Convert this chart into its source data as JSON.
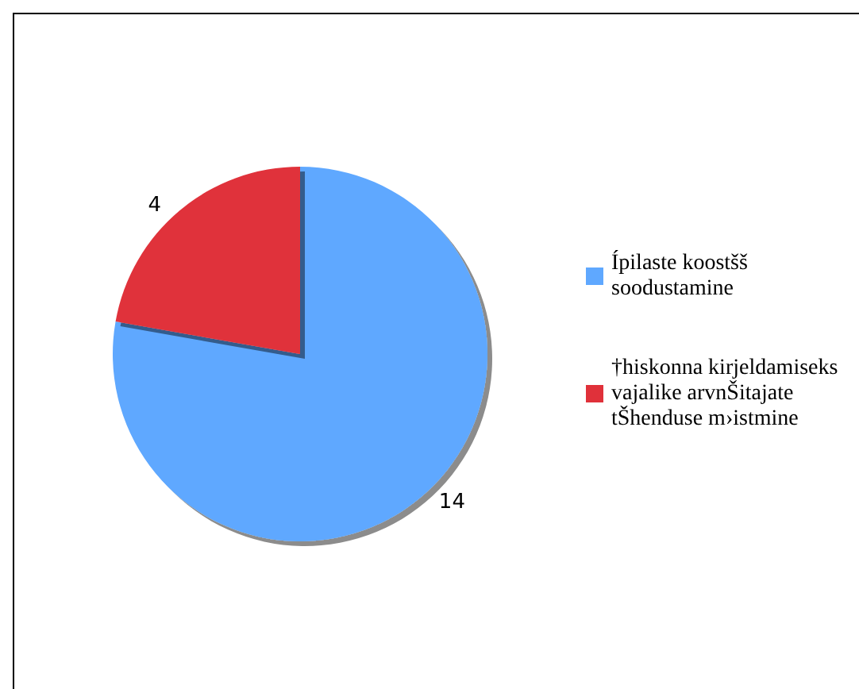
{
  "chart_data": {
    "type": "pie",
    "categories": [
      "Ípilaste koostšš soodustamine",
      "†hiskonna kirjeldamiseks vajalike arvnŠitajate tŠhenduse m›istmine"
    ],
    "values": [
      14,
      4
    ],
    "colors": [
      "#5fa8ff",
      "#e0313a"
    ],
    "data_labels": true,
    "legend": "right"
  }
}
